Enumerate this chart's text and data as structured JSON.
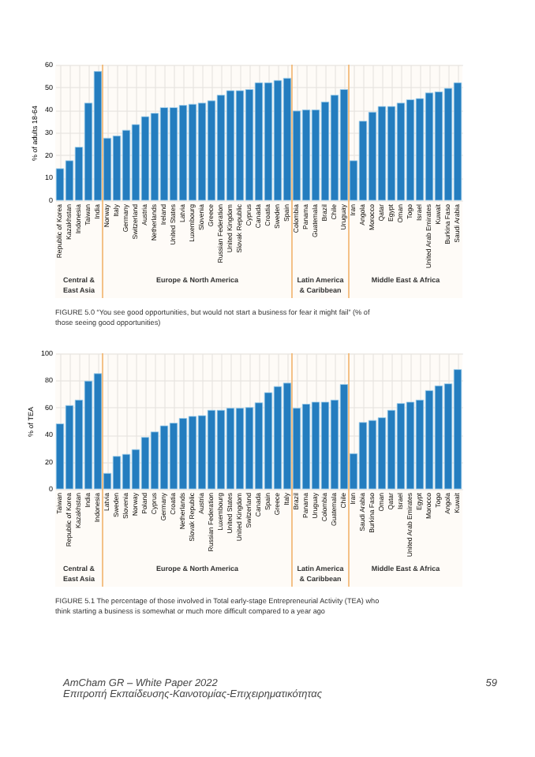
{
  "chart_data": [
    {
      "type": "bar",
      "ylabel": "% of adults 18-64",
      "categories": [
        "Republic of Korea",
        "Kazakhstan",
        "Indonesia",
        "Taiwan",
        "India",
        "Norway",
        "Italy",
        "Germany",
        "Switzerland",
        "Austria",
        "Netherlands",
        "Ireland",
        "United States",
        "Latvia",
        "Luxembourg",
        "Slovenia",
        "Greece",
        "Russian Federation",
        "United Kingdom",
        "Slovak Republic",
        "Cyprus",
        "Canada",
        "Croatia",
        "Sweden",
        "Spain",
        "Colombia",
        "Panama",
        "Guatemala",
        "Brazil",
        "Chile",
        "Uruguay",
        "Iran",
        "Angola",
        "Morocco",
        "Qatar",
        "Egypt",
        "Oman",
        "Togo",
        "Israel",
        "United Arab Emirates",
        "Kuwait",
        "Burkina Faso",
        "Saudi Arabia"
      ],
      "values": [
        14,
        17.5,
        23.5,
        43,
        57,
        27.5,
        28.5,
        31,
        33.5,
        37,
        38.5,
        41,
        41,
        42,
        42.5,
        43,
        44,
        46.5,
        48.5,
        48.5,
        49,
        52,
        52,
        53,
        54,
        39.5,
        40,
        40,
        43.5,
        46.5,
        49,
        17.5,
        35,
        39,
        41.5,
        41.5,
        43,
        44.5,
        45,
        47.5,
        48,
        49.5,
        52
      ],
      "color": "#1a7bc4",
      "ylim": [
        0,
        60
      ],
      "yticks": [
        0,
        10,
        20,
        30,
        40,
        50,
        60
      ],
      "grid": true,
      "bands": [
        {
          "axis": "x",
          "from": "Republic of Korea",
          "to": "India",
          "label": "Central & East Asia",
          "color": "#f2b36b"
        },
        {
          "axis": "x",
          "from": "Norway",
          "to": "Spain",
          "label": "Europe & North America",
          "color": "#f2b36b"
        },
        {
          "axis": "x",
          "from": "Colombia",
          "to": "Uruguay",
          "label": "Latin America & Caribbean",
          "color": "#f2b36b"
        },
        {
          "axis": "x",
          "from": "Iran",
          "to": "Saudi Arabia",
          "label": "Middle East & Africa",
          "color": "#f2b36b"
        }
      ],
      "annotations": [
        "FIGURE 5.0 “You see good opportunities, but would not start a business for fear it might fail” (% of those seeing good opportunities)"
      ]
    },
    {
      "type": "bar",
      "ylabel": "% of TEA",
      "categories": [
        "Taiwan",
        "Republic of Korea",
        "Kazakhstan",
        "India",
        "Indonesia",
        "Latvia",
        "Sweden",
        "Slovenia",
        "Norway",
        "Poland",
        "Cyprus",
        "Germany",
        "Croatia",
        "Netherlands",
        "Slovak Republic",
        "Austria",
        "Russian Federation",
        "Luxembourg",
        "United States",
        "United Kingdom",
        "Switzerland",
        "Canada",
        "Spain",
        "Greece",
        "Italy",
        "Brazil",
        "Panama",
        "Uruguay",
        "Colombia",
        "Guatemala",
        "Chile",
        "Iran",
        "Saudi Arabia",
        "Burkina Faso",
        "Oman",
        "Qatar",
        "Israel",
        "United Arab Emirates",
        "Egypt",
        "Morocco",
        "Togo",
        "Angola",
        "Kuwait"
      ],
      "values": [
        48,
        61.5,
        65.5,
        79.5,
        85,
        11.5,
        24,
        25.5,
        29,
        38,
        42,
        46.5,
        48.5,
        52,
        53.5,
        54,
        58,
        58,
        59.5,
        59.5,
        60,
        63.5,
        71,
        75.5,
        78,
        59.5,
        62.5,
        64,
        64,
        65.5,
        77,
        26,
        49,
        50.5,
        52.5,
        58,
        63,
        64,
        65.5,
        72.5,
        76,
        77.5,
        88
      ],
      "color": "#1a7bc4",
      "ylim": [
        0,
        100
      ],
      "yticks": [
        0,
        20,
        40,
        60,
        80,
        100
      ],
      "grid": true,
      "bands": [
        {
          "axis": "x",
          "from": "Taiwan",
          "to": "Indonesia",
          "label": "Central & East Asia",
          "color": "#f2b36b"
        },
        {
          "axis": "x",
          "from": "Latvia",
          "to": "Italy",
          "label": "Europe & North America",
          "color": "#f2b36b"
        },
        {
          "axis": "x",
          "from": "Brazil",
          "to": "Chile",
          "label": "Latin America & Caribbean",
          "color": "#f2b36b"
        },
        {
          "axis": "x",
          "from": "Iran",
          "to": "Kuwait",
          "label": "Middle East & Africa",
          "color": "#f2b36b"
        }
      ],
      "annotations": [
        "FIGURE 5.1 The percentage of those involved in Total early-stage Entrepreneurial Activity (TEA) who think starting a business is somewhat or much more difficult compared to a year ago",
        "AmCham GR – White Paper 2022",
        "Επιτροπή Εκπαίδευσης-Καινοτομίας-Επιχειρηματικότητας",
        "59"
      ]
    }
  ]
}
